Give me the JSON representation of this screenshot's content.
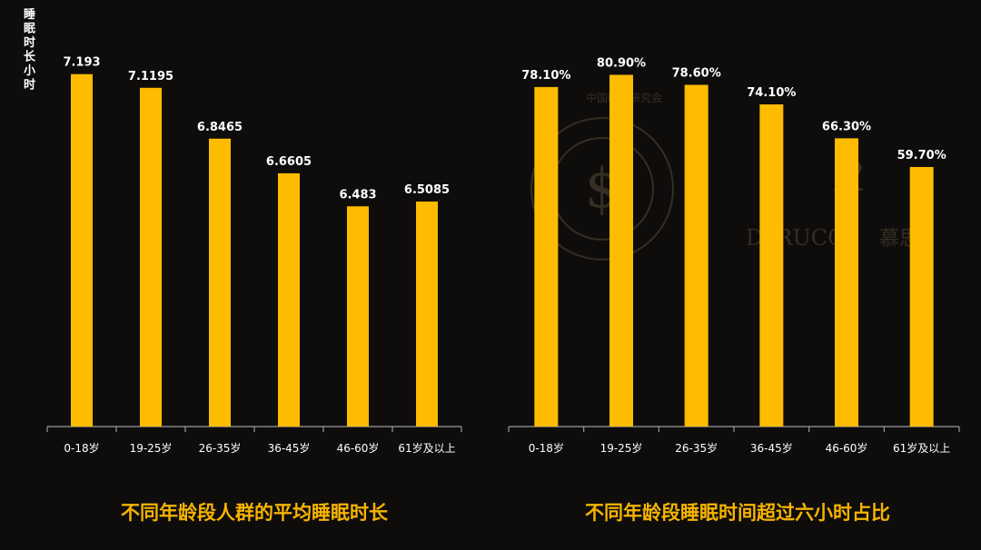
{
  "chart_data": [
    {
      "type": "bar",
      "title": "不同年龄段人群的平均睡眠时长",
      "ylabel": "睡眠时长小时",
      "categories": [
        "0-18岁",
        "19-25岁",
        "26-35岁",
        "36-45岁",
        "46-60岁",
        "61岁及以上"
      ],
      "values": [
        7.193,
        7.1195,
        6.8465,
        6.6605,
        6.483,
        6.5085
      ],
      "value_labels": [
        "7.193",
        "7.1195",
        "6.8465",
        "6.6605",
        "6.483",
        "6.5085"
      ],
      "ylim": [
        5.3,
        7.25
      ],
      "grid": false,
      "bar_color": "#fdbc00"
    },
    {
      "type": "bar",
      "title": "不同年龄段睡眠时间超过六小时占比",
      "ylabel": "",
      "categories": [
        "0-18岁",
        "19-25岁",
        "26-35岁",
        "36-45岁",
        "46-60岁",
        "61岁及以上"
      ],
      "values": [
        78.1,
        80.9,
        78.6,
        74.1,
        66.3,
        59.7
      ],
      "value_labels": [
        "78.10%",
        "80.90%",
        "78.60%",
        "74.10%",
        "66.30%",
        "59.70%"
      ],
      "ylim": [
        0,
        83.5
      ],
      "grid": false,
      "bar_color": "#fdbc00"
    }
  ],
  "watermark": {
    "seal_text": "中国睡眠研究会",
    "brand_text": "DeRUCCI",
    "brand_cn": "慕思"
  }
}
